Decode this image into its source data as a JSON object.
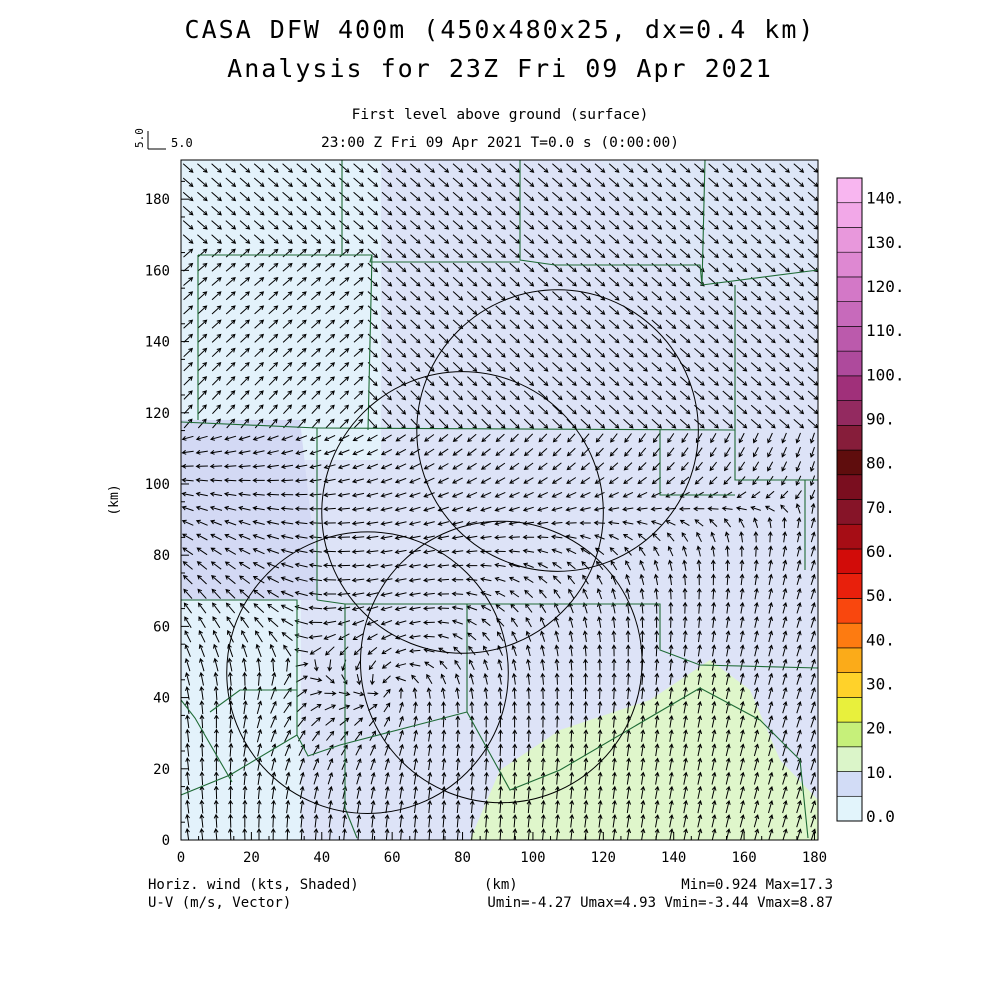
{
  "header": {
    "title": "CASA DFW 400m (450x480x25, dx=0.4 km)",
    "analysis": "Analysis for 23Z Fri 09 Apr 2021",
    "level": "First level above ground (surface)",
    "time": "23:00 Z Fri 09 Apr 2021    T=0.0 s (0:00:00)"
  },
  "vector_ref": {
    "u_label": "5.0",
    "v_label": "5.0"
  },
  "axes": {
    "x_label": "(km)",
    "y_label": "(km)",
    "x_ticks": [
      "0",
      "20",
      "40",
      "60",
      "80",
      "100",
      "120",
      "140",
      "160",
      "180"
    ],
    "y_ticks": [
      "0",
      "20",
      "40",
      "60",
      "80",
      "100",
      "120",
      "140",
      "160",
      "180"
    ],
    "x_range": [
      0,
      181
    ],
    "y_range": [
      0,
      191
    ]
  },
  "colorbar": {
    "labels": [
      "0.0",
      "10.",
      "20.",
      "30.",
      "40.",
      "50.",
      "60.",
      "70.",
      "80.",
      "90.",
      "100.",
      "110.",
      "120.",
      "130.",
      "140."
    ],
    "colors": [
      "#e2f4fb",
      "#d2dcf6",
      "#dbf5c9",
      "#c6f07a",
      "#e8f03c",
      "#ffd22a",
      "#fbab19",
      "#fd7b11",
      "#f9470e",
      "#e8200c",
      "#d20c09",
      "#a60d15",
      "#861428",
      "#7a0e1f",
      "#5f0d0d",
      "#861d3a",
      "#932a60",
      "#a0307a",
      "#ae4a9c",
      "#bb5aac",
      "#c76abb",
      "#d378c7",
      "#de88d2",
      "#e898dc",
      "#f2a8e8",
      "#f8b6f0"
    ]
  },
  "footer": {
    "left1": "Horiz. wind (kts, Shaded)",
    "left2": "U-V (m/s, Vector)",
    "center": "(km)",
    "right1": "Min=0.924 Max=17.3",
    "right2": "Umin=-4.27 Umax=4.93 Vmin=-3.44 Vmax=8.87"
  },
  "field": {
    "min": 0.924,
    "max": 17.3,
    "units": "kts"
  },
  "radar_rings_km": [
    {
      "cx": 107,
      "cy": 115,
      "r": 40
    },
    {
      "cx": 80,
      "cy": 92,
      "r": 40
    },
    {
      "cx": 91,
      "cy": 50,
      "r": 40
    },
    {
      "cx": 53,
      "cy": 47,
      "r": 40
    }
  ]
}
